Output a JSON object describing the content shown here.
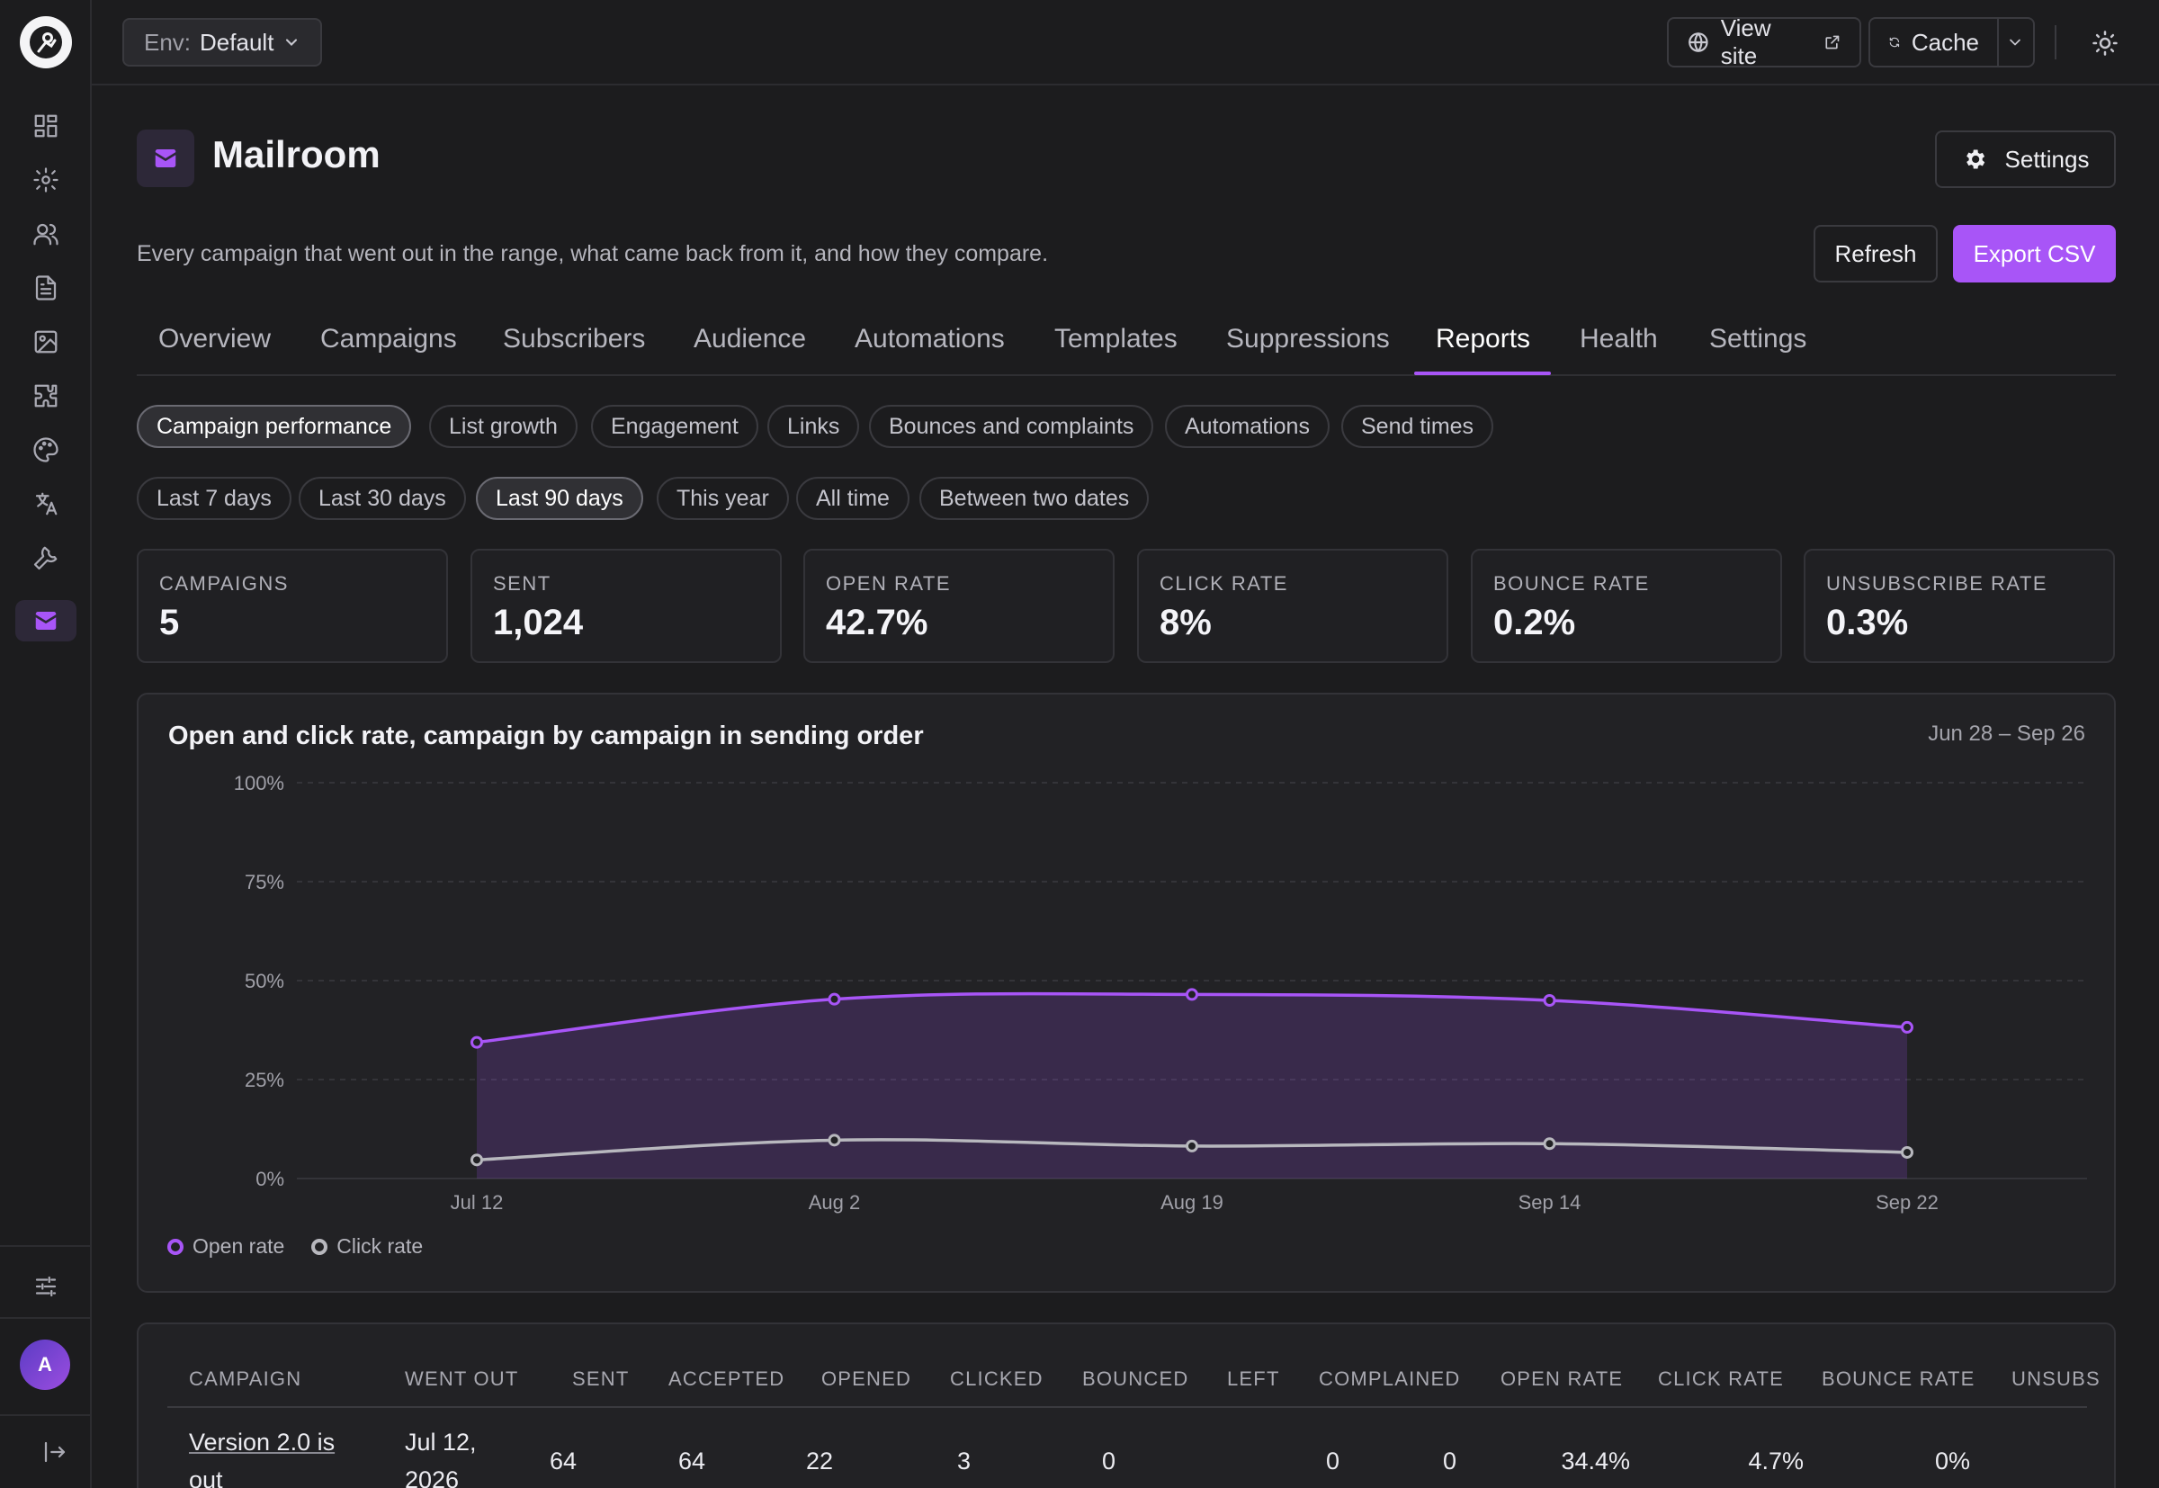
{
  "topbar": {
    "env_label": "Env:",
    "env_value": "Default",
    "view_site": "View site",
    "cache": "Cache"
  },
  "sidebar": {
    "items": [
      "dashboard",
      "settings",
      "users",
      "documents",
      "media",
      "plugins",
      "appearance",
      "translations",
      "tools",
      "mailroom"
    ],
    "avatar_initial": "A"
  },
  "header": {
    "title": "Mailroom",
    "settings_label": "Settings",
    "description": "Every campaign that went out in the range, what came back from it, and how they compare.",
    "refresh_label": "Refresh",
    "export_label": "Export CSV"
  },
  "tabs": [
    "Overview",
    "Campaigns",
    "Subscribers",
    "Audience",
    "Automations",
    "Templates",
    "Suppressions",
    "Reports",
    "Health",
    "Settings"
  ],
  "active_tab": "Reports",
  "report_types": [
    "Campaign performance",
    "List growth",
    "Engagement",
    "Links",
    "Bounces and complaints",
    "Automations",
    "Send times"
  ],
  "active_report_type": "Campaign performance",
  "ranges": [
    "Last 7 days",
    "Last 30 days",
    "Last 90 days",
    "This year",
    "All time",
    "Between two dates"
  ],
  "active_range": "Last 90 days",
  "stats": [
    {
      "label": "CAMPAIGNS",
      "value": "5"
    },
    {
      "label": "SENT",
      "value": "1,024"
    },
    {
      "label": "OPEN RATE",
      "value": "42.7%"
    },
    {
      "label": "CLICK RATE",
      "value": "8%"
    },
    {
      "label": "BOUNCE RATE",
      "value": "0.2%"
    },
    {
      "label": "UNSUBSCRIBE RATE",
      "value": "0.3%"
    }
  ],
  "chart_data": {
    "type": "area",
    "title": "Open and click rate, campaign by campaign in sending order",
    "date_range": "Jun 28 – Sep 26",
    "categories": [
      "Jul 12",
      "Aug 2",
      "Aug 19",
      "Sep 14",
      "Sep 22"
    ],
    "y_ticks": [
      "0%",
      "25%",
      "50%",
      "75%",
      "100%"
    ],
    "ylim": [
      0,
      100
    ],
    "grid": true,
    "legend_position": "bottom-left",
    "series": [
      {
        "name": "Open rate",
        "values": [
          34.4,
          45.3,
          46.5,
          45.0,
          38.2
        ],
        "color": "#a855f7"
      },
      {
        "name": "Click rate",
        "values": [
          4.7,
          9.7,
          8.2,
          8.8,
          6.6
        ],
        "color": "#b8b8be"
      }
    ]
  },
  "table": {
    "columns": [
      "CAMPAIGN",
      "WENT OUT",
      "SENT",
      "ACCEPTED",
      "OPENED",
      "CLICKED",
      "BOUNCED",
      "LEFT",
      "COMPLAINED",
      "OPEN RATE",
      "CLICK RATE",
      "BOUNCE RATE",
      "UNSUBS"
    ],
    "rows": [
      {
        "campaign_line1": "Version 2.0 is",
        "campaign_line2": "out",
        "went_out_line1": "Jul 12,",
        "went_out_line2": "2026",
        "sent": "64",
        "accepted": "64",
        "opened": "22",
        "clicked": "3",
        "bounced": "0",
        "left": "0",
        "complained": "0",
        "open_rate": "34.4%",
        "click_rate": "4.7%",
        "bounce_rate": "0%"
      }
    ]
  }
}
